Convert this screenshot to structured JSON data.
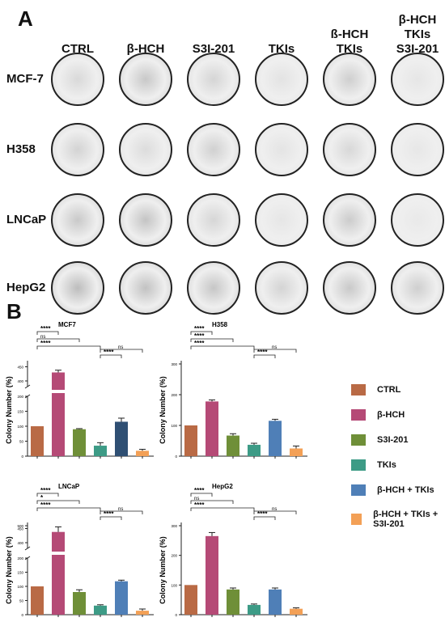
{
  "panel_a": {
    "letter": "A",
    "column_headers": [
      {
        "lines": [
          "CTRL"
        ]
      },
      {
        "lines": [
          "β-HCH"
        ]
      },
      {
        "lines": [
          "S3I-201"
        ]
      },
      {
        "lines": [
          "TKIs"
        ]
      },
      {
        "lines": [
          "ß-HCH",
          "TKIs"
        ]
      },
      {
        "lines": [
          "β-HCH",
          "TKIs",
          "S3I-201"
        ]
      }
    ],
    "row_headers": [
      "MCF-7",
      "H358",
      "LNCaP",
      "HepG2"
    ]
  },
  "panel_b": {
    "letter": "B",
    "legend": [
      {
        "label": "CTRL",
        "color": "#b96a45"
      },
      {
        "label": "β-HCH",
        "color": "#b54a76"
      },
      {
        "label": "S3I-201",
        "color": "#6f8f38"
      },
      {
        "label": "TKIs",
        "color": "#3d9b86"
      },
      {
        "label": "β-HCH + TKIs",
        "color": "#4f7fb7"
      },
      {
        "label": "β-HCH + TKIs + S3I-201",
        "color": "#f3a056"
      }
    ]
  },
  "chart_data": [
    {
      "type": "bar",
      "title": "MCF7",
      "ylabel": "Colony  Number (%)",
      "axis_break": true,
      "yticks_lower": [
        "0",
        "50",
        "100",
        "150",
        "200"
      ],
      "yticks_upper": [
        "400",
        "450"
      ],
      "values": [
        100,
        430,
        90,
        35,
        115,
        18
      ],
      "errors": [
        0,
        8,
        2,
        10,
        12,
        5
      ],
      "bar_colors": [
        "#b96a45",
        "#b54a76",
        "#6f8f38",
        "#3d9b86",
        "#2f4f73",
        "#f3a056"
      ],
      "significance": [
        {
          "from": 0,
          "to": 1,
          "label": "****"
        },
        {
          "from": 0,
          "to": 2,
          "label": "ns"
        },
        {
          "from": 0,
          "to": 3,
          "label": "****"
        },
        {
          "from": 3,
          "to": 4,
          "label": "****"
        },
        {
          "from": 3,
          "to": 5,
          "label": "ns"
        }
      ]
    },
    {
      "type": "bar",
      "title": "H358",
      "ylabel": "Colony  Number (%)",
      "axis_break": false,
      "ylim": [
        0,
        300
      ],
      "yticks": [
        "0",
        "100",
        "200",
        "300"
      ],
      "values": [
        100,
        178,
        67,
        37,
        115,
        25
      ],
      "errors": [
        0,
        5,
        6,
        5,
        5,
        8
      ],
      "bar_colors": [
        "#b96a45",
        "#b54a76",
        "#6f8f38",
        "#3d9b86",
        "#4f7fb7",
        "#f3a056"
      ],
      "significance": [
        {
          "from": 0,
          "to": 1,
          "label": "****"
        },
        {
          "from": 0,
          "to": 2,
          "label": "****"
        },
        {
          "from": 0,
          "to": 3,
          "label": "****"
        },
        {
          "from": 3,
          "to": 4,
          "label": "****"
        },
        {
          "from": 3,
          "to": 5,
          "label": "ns"
        }
      ]
    },
    {
      "type": "bar",
      "title": "LNCaP",
      "ylabel": "Colony  Number (%)",
      "axis_break": true,
      "yticks_lower": [
        "0",
        "50",
        "100",
        "150",
        "200"
      ],
      "yticks_upper": [
        "400",
        "450",
        "500"
      ],
      "values": [
        100,
        438,
        80,
        32,
        118,
        14
      ],
      "errors": [
        0,
        18,
        8,
        3,
        4,
        6
      ],
      "bar_colors": [
        "#b96a45",
        "#b54a76",
        "#6f8f38",
        "#3d9b86",
        "#4f7fb7",
        "#f3a056"
      ],
      "significance": [
        {
          "from": 0,
          "to": 1,
          "label": "****"
        },
        {
          "from": 0,
          "to": 2,
          "label": "*"
        },
        {
          "from": 0,
          "to": 3,
          "label": "****"
        },
        {
          "from": 3,
          "to": 4,
          "label": "****"
        },
        {
          "from": 3,
          "to": 5,
          "label": "ns"
        }
      ]
    },
    {
      "type": "bar",
      "title": "HepG2",
      "ylabel": "Colony  Number (%)",
      "axis_break": false,
      "ylim": [
        0,
        300
      ],
      "yticks": [
        "0",
        "100",
        "200",
        "300"
      ],
      "values": [
        100,
        265,
        85,
        33,
        85,
        20
      ],
      "errors": [
        0,
        12,
        5,
        3,
        5,
        3
      ],
      "bar_colors": [
        "#b96a45",
        "#b54a76",
        "#6f8f38",
        "#3d9b86",
        "#4f7fb7",
        "#f3a056"
      ],
      "significance": [
        {
          "from": 0,
          "to": 1,
          "label": "****"
        },
        {
          "from": 0,
          "to": 2,
          "label": "ns"
        },
        {
          "from": 0,
          "to": 3,
          "label": "****"
        },
        {
          "from": 3,
          "to": 4,
          "label": "****"
        },
        {
          "from": 3,
          "to": 5,
          "label": "ns"
        }
      ]
    }
  ]
}
